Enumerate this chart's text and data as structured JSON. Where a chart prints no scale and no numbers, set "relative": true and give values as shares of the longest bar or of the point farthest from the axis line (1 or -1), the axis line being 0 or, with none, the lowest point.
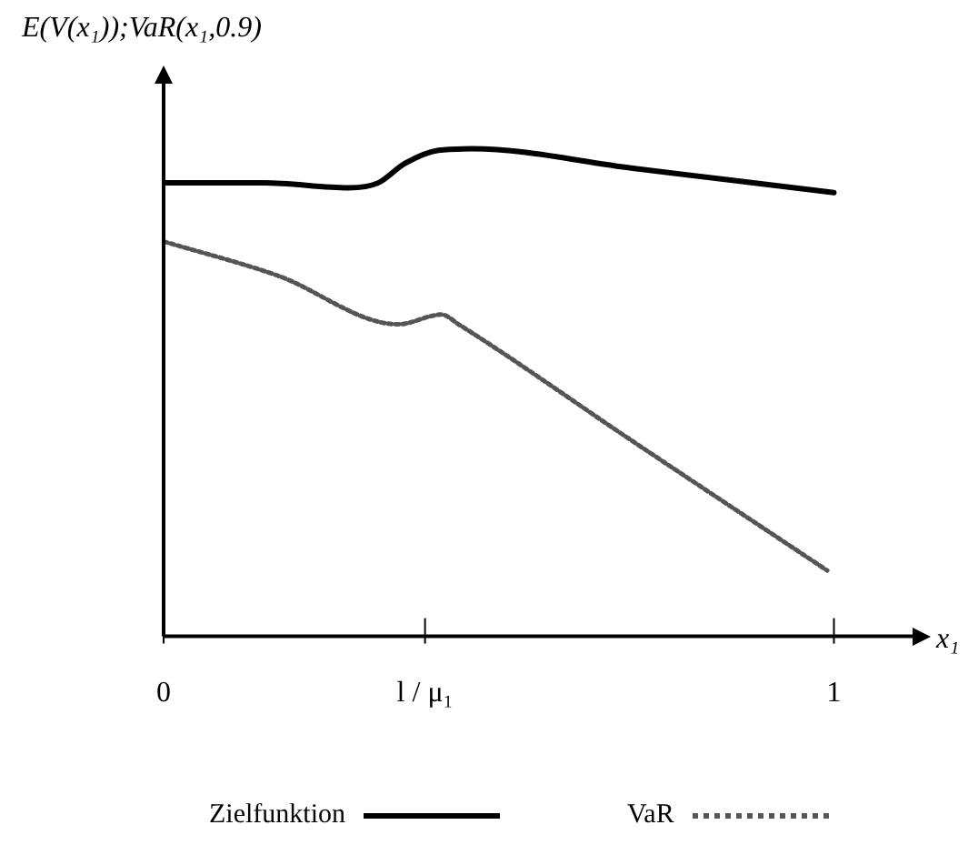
{
  "chart_data": {
    "type": "line",
    "ylabel": "E(V(x₁));VaR(x₁,0.9)",
    "xlabel": "x₁",
    "relative": true,
    "xlim": [
      0,
      1.12
    ],
    "xticks": [
      0,
      {
        "value": 0.39,
        "label": "l / μ₁"
      },
      1
    ],
    "legend": "bottom",
    "marker": "none",
    "grid": false,
    "series": [
      {
        "name": "Zielfunktion",
        "color": "#000000",
        "line_style": "solid",
        "x": [
          0,
          0.15,
          0.276,
          0.32,
          0.36,
          0.41,
          0.46,
          0.7,
          1
        ],
        "values": [
          0.93,
          0.93,
          0.92,
          0.93,
          0.97,
          0.997,
          1,
          0.96,
          0.91
        ]
      },
      {
        "name": "VaR",
        "color": "#555555",
        "line_style": "dotted",
        "x": [
          0,
          0.17,
          0.35,
          0.415,
          0.44,
          0.7,
          0.99
        ],
        "values": [
          0.81,
          0.74,
          0.64,
          0.66,
          0.64,
          0.4,
          0.135
        ]
      }
    ]
  }
}
